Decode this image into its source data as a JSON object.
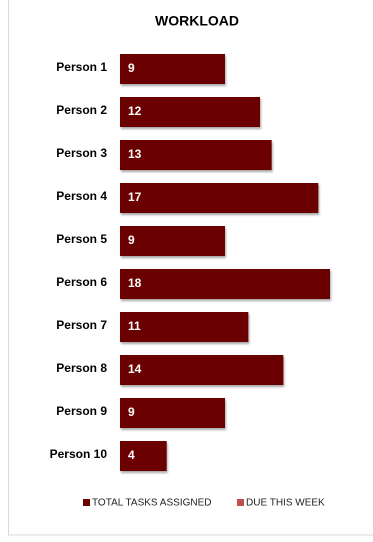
{
  "chart_data": {
    "type": "bar",
    "orientation": "horizontal",
    "title": "WORKLOAD",
    "categories": [
      "Person 1",
      "Person 2",
      "Person 3",
      "Person 4",
      "Person 5",
      "Person 6",
      "Person 7",
      "Person 8",
      "Person 9",
      "Person 10"
    ],
    "series": [
      {
        "name": "TOTAL TASKS ASSIGNED",
        "color": "#6b0000",
        "values": [
          9,
          12,
          13,
          17,
          9,
          18,
          11,
          14,
          9,
          4
        ]
      },
      {
        "name": "DUE THIS WEEK",
        "color": "#c0504d",
        "values": [
          null,
          null,
          null,
          null,
          null,
          null,
          null,
          null,
          null,
          null
        ]
      }
    ],
    "data_labels": true,
    "legend": "bottom"
  }
}
